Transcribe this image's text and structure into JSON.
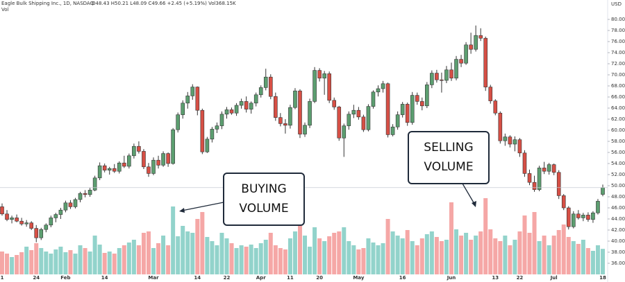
{
  "chart_data": {
    "type": "candlestick",
    "title": "Eagle Bulk Shipping Inc., 1D, NASDAQ",
    "legend_text": "O48.43 H50.21 L48.09 C49.66 +2.45 (+5.19%) Vol368.15K",
    "volume_label": "Vol",
    "y_axis_label": "USD",
    "up_color": "#5c9e70",
    "down_color": "#d64f45",
    "volume_up_color": "#92d3cb",
    "volume_down_color": "#f5a7a6",
    "ylim": [
      36,
      80
    ],
    "yticks": [
      {
        "value": 36,
        "label": "36.00"
      },
      {
        "value": 38,
        "label": "38.00"
      },
      {
        "value": 40,
        "label": "40.00"
      },
      {
        "value": 42,
        "label": "42.00"
      },
      {
        "value": 44,
        "label": "44.00"
      },
      {
        "value": 46,
        "label": "46.00"
      },
      {
        "value": 48,
        "label": "48.00"
      },
      {
        "value": 50,
        "label": "50.00"
      },
      {
        "value": 52,
        "label": "52.00"
      },
      {
        "value": 54,
        "label": "54.00"
      },
      {
        "value": 56,
        "label": "56.00"
      },
      {
        "value": 58,
        "label": "58.00"
      },
      {
        "value": 60,
        "label": "60.00"
      },
      {
        "value": 62,
        "label": "62.00"
      },
      {
        "value": 64,
        "label": "64.00"
      },
      {
        "value": 66,
        "label": "66.00"
      },
      {
        "value": 68,
        "label": "68.00"
      },
      {
        "value": 70,
        "label": "70.00"
      },
      {
        "value": 72,
        "label": "72.00"
      },
      {
        "value": 74,
        "label": "74.00"
      },
      {
        "value": 76,
        "label": "76.00"
      },
      {
        "value": 78,
        "label": "78.00"
      },
      {
        "value": 80,
        "label": "80.00"
      }
    ],
    "vlim": [
      0,
      1500
    ],
    "categories": [
      "1",
      null,
      null,
      null,
      null,
      null,
      null,
      "24",
      null,
      null,
      null,
      null,
      null,
      "Feb",
      null,
      null,
      null,
      null,
      null,
      null,
      null,
      "14",
      null,
      null,
      null,
      null,
      null,
      null,
      null,
      null,
      null,
      "Mar",
      null,
      null,
      null,
      null,
      null,
      null,
      null,
      null,
      "14",
      null,
      null,
      null,
      null,
      null,
      "22",
      null,
      null,
      null,
      null,
      null,
      null,
      "Apr",
      null,
      null,
      null,
      null,
      null,
      "11",
      null,
      null,
      null,
      null,
      null,
      "20",
      null,
      null,
      null,
      null,
      null,
      null,
      null,
      "May",
      null,
      null,
      null,
      null,
      null,
      null,
      null,
      null,
      "16",
      null,
      null,
      null,
      null,
      null,
      null,
      null,
      null,
      null,
      "Jun",
      null,
      null,
      null,
      null,
      null,
      null,
      null,
      null,
      "13",
      null,
      null,
      null,
      null,
      "22",
      null,
      null,
      null,
      null,
      null,
      null,
      "Jul",
      null,
      null,
      null,
      null,
      null,
      null,
      null,
      null,
      null,
      "18"
    ],
    "ohlc": [
      [
        46.2,
        46.8,
        44.6,
        44.9
      ],
      [
        44.9,
        45.6,
        43.6,
        43.9
      ],
      [
        43.9,
        44.6,
        43.2,
        44.2
      ],
      [
        44.2,
        44.8,
        43.4,
        43.6
      ],
      [
        43.6,
        44.2,
        42.8,
        43.1
      ],
      [
        43.1,
        43.8,
        42.6,
        43.3
      ],
      [
        43.3,
        43.6,
        42.0,
        42.3
      ],
      [
        42.3,
        42.9,
        39.8,
        40.6
      ],
      [
        40.6,
        42.4,
        40.2,
        42.1
      ],
      [
        42.1,
        43.2,
        41.6,
        42.9
      ],
      [
        42.9,
        44.6,
        42.5,
        44.2
      ],
      [
        44.2,
        45.1,
        43.4,
        44.8
      ],
      [
        44.8,
        46.0,
        44.0,
        45.6
      ],
      [
        45.6,
        47.3,
        45.2,
        46.9
      ],
      [
        46.9,
        47.4,
        45.8,
        46.2
      ],
      [
        46.2,
        47.8,
        45.9,
        47.5
      ],
      [
        47.5,
        48.9,
        47.0,
        48.6
      ],
      [
        48.6,
        49.2,
        47.9,
        48.4
      ],
      [
        48.4,
        49.6,
        48.0,
        49.2
      ],
      [
        49.2,
        51.8,
        49.0,
        51.4
      ],
      [
        51.4,
        54.2,
        51.0,
        53.6
      ],
      [
        53.6,
        54.0,
        52.4,
        52.8
      ],
      [
        52.8,
        53.4,
        52.0,
        53.1
      ],
      [
        53.1,
        53.9,
        52.3,
        52.6
      ],
      [
        52.6,
        54.4,
        52.2,
        54.1
      ],
      [
        54.1,
        55.4,
        53.2,
        53.5
      ],
      [
        53.5,
        55.8,
        53.1,
        55.4
      ],
      [
        55.4,
        57.6,
        54.9,
        57.1
      ],
      [
        57.1,
        58.0,
        55.8,
        56.2
      ],
      [
        56.2,
        56.6,
        53.0,
        53.4
      ],
      [
        53.4,
        54.1,
        51.6,
        52.2
      ],
      [
        52.2,
        55.1,
        51.9,
        54.6
      ],
      [
        54.6,
        55.4,
        53.1,
        53.7
      ],
      [
        53.7,
        56.2,
        53.4,
        55.8
      ],
      [
        55.8,
        56.0,
        53.4,
        54.0
      ],
      [
        54.0,
        60.4,
        53.8,
        60.1
      ],
      [
        60.1,
        63.2,
        59.6,
        62.8
      ],
      [
        62.8,
        65.4,
        62.1,
        64.9
      ],
      [
        64.9,
        66.9,
        63.9,
        66.2
      ],
      [
        66.2,
        68.3,
        65.5,
        67.8
      ],
      [
        67.8,
        67.9,
        62.7,
        63.6
      ],
      [
        63.6,
        63.9,
        55.7,
        56.1
      ],
      [
        56.1,
        58.8,
        55.9,
        58.4
      ],
      [
        58.4,
        60.6,
        57.8,
        60.2
      ],
      [
        60.2,
        61.4,
        59.5,
        60.8
      ],
      [
        60.8,
        63.4,
        60.2,
        62.9
      ],
      [
        62.9,
        64.2,
        62.1,
        63.7
      ],
      [
        63.7,
        64.1,
        62.8,
        63.1
      ],
      [
        63.1,
        64.9,
        62.6,
        64.5
      ],
      [
        64.5,
        65.7,
        63.9,
        65.2
      ],
      [
        65.2,
        66.1,
        63.2,
        63.8
      ],
      [
        63.8,
        65.2,
        63.0,
        64.9
      ],
      [
        64.9,
        66.8,
        64.3,
        66.4
      ],
      [
        66.4,
        68.1,
        65.9,
        67.7
      ],
      [
        67.7,
        71.1,
        67.2,
        69.6
      ],
      [
        69.6,
        70.1,
        65.6,
        66.1
      ],
      [
        66.1,
        66.8,
        61.7,
        62.3
      ],
      [
        62.3,
        63.1,
        60.7,
        61.2
      ],
      [
        61.2,
        62.0,
        59.4,
        60.9
      ],
      [
        60.9,
        64.6,
        60.3,
        64.1
      ],
      [
        64.1,
        67.6,
        63.8,
        67.1
      ],
      [
        67.1,
        67.4,
        58.6,
        59.3
      ],
      [
        59.3,
        61.4,
        58.8,
        60.9
      ],
      [
        60.9,
        65.7,
        60.4,
        65.2
      ],
      [
        65.2,
        71.4,
        64.9,
        70.8
      ],
      [
        70.8,
        71.2,
        68.8,
        69.4
      ],
      [
        69.4,
        70.7,
        66.4,
        70.2
      ],
      [
        70.2,
        70.6,
        64.9,
        65.4
      ],
      [
        65.4,
        65.9,
        63.7,
        64.2
      ],
      [
        64.2,
        64.4,
        58.1,
        58.6
      ],
      [
        58.6,
        61.2,
        55.2,
        60.8
      ],
      [
        60.8,
        63.4,
        60.1,
        62.9
      ],
      [
        62.9,
        64.6,
        62.2,
        63.6
      ],
      [
        63.6,
        64.2,
        61.9,
        62.4
      ],
      [
        62.4,
        62.8,
        59.7,
        60.1
      ],
      [
        60.1,
        64.7,
        59.8,
        64.3
      ],
      [
        64.3,
        67.2,
        63.9,
        66.9
      ],
      [
        66.9,
        68.1,
        66.1,
        67.5
      ],
      [
        67.5,
        68.9,
        66.8,
        68.4
      ],
      [
        68.4,
        68.6,
        58.7,
        59.2
      ],
      [
        59.2,
        61.1,
        58.9,
        60.6
      ],
      [
        60.6,
        63.4,
        60.1,
        62.8
      ],
      [
        62.8,
        65.1,
        62.3,
        64.7
      ],
      [
        64.7,
        65.0,
        60.8,
        61.4
      ],
      [
        61.4,
        66.9,
        61.0,
        66.3
      ],
      [
        66.3,
        66.8,
        64.6,
        65.2
      ],
      [
        65.2,
        65.9,
        63.6,
        64.4
      ],
      [
        64.4,
        68.7,
        64.0,
        68.2
      ],
      [
        68.2,
        70.8,
        67.6,
        70.3
      ],
      [
        70.3,
        70.9,
        68.6,
        69.1
      ],
      [
        69.1,
        70.4,
        66.8,
        69.0
      ],
      [
        69.0,
        71.6,
        68.5,
        70.9
      ],
      [
        70.9,
        72.2,
        68.9,
        69.4
      ],
      [
        69.4,
        73.4,
        69.0,
        72.8
      ],
      [
        72.8,
        73.6,
        71.4,
        72.1
      ],
      [
        72.1,
        75.9,
        71.8,
        75.4
      ],
      [
        75.4,
        77.6,
        73.8,
        74.6
      ],
      [
        74.6,
        78.9,
        74.2,
        77.1
      ],
      [
        77.1,
        78.4,
        76.1,
        76.6
      ],
      [
        76.6,
        76.9,
        67.1,
        67.8
      ],
      [
        67.8,
        68.2,
        64.8,
        65.3
      ],
      [
        65.3,
        65.6,
        62.7,
        63.1
      ],
      [
        63.1,
        63.4,
        57.6,
        58.1
      ],
      [
        58.1,
        59.4,
        57.2,
        58.8
      ],
      [
        58.8,
        59.1,
        56.9,
        57.5
      ],
      [
        57.5,
        58.9,
        56.2,
        58.3
      ],
      [
        58.3,
        58.6,
        55.2,
        55.9
      ],
      [
        55.9,
        56.4,
        51.6,
        52.2
      ],
      [
        52.2,
        52.9,
        50.1,
        50.6
      ],
      [
        50.6,
        51.8,
        48.9,
        49.3
      ],
      [
        49.3,
        53.6,
        49.0,
        53.2
      ],
      [
        53.2,
        54.3,
        52.1,
        52.6
      ],
      [
        52.6,
        54.1,
        52.0,
        53.8
      ],
      [
        53.8,
        54.0,
        51.9,
        52.4
      ],
      [
        52.4,
        52.8,
        47.6,
        48.2
      ],
      [
        48.2,
        48.5,
        45.6,
        46.0
      ],
      [
        46.0,
        46.3,
        42.1,
        42.6
      ],
      [
        42.6,
        45.4,
        42.3,
        44.9
      ],
      [
        44.9,
        45.6,
        43.9,
        44.2
      ],
      [
        44.2,
        45.1,
        43.6,
        44.7
      ],
      [
        44.7,
        45.2,
        43.5,
        43.9
      ],
      [
        43.9,
        45.4,
        43.3,
        45.1
      ],
      [
        45.1,
        47.6,
        44.8,
        47.2
      ],
      [
        48.43,
        50.21,
        48.09,
        49.66
      ]
    ],
    "volume": [
      330,
      300,
      250,
      280,
      320,
      400,
      350,
      450,
      380,
      330,
      300,
      360,
      400,
      320,
      350,
      300,
      420,
      380,
      330,
      560,
      430,
      310,
      330,
      300,
      380,
      420,
      460,
      500,
      420,
      600,
      620,
      380,
      450,
      560,
      420,
      980,
      550,
      700,
      620,
      600,
      800,
      900,
      540,
      480,
      420,
      600,
      520,
      450,
      380,
      420,
      400,
      430,
      380,
      450,
      500,
      600,
      420,
      380,
      360,
      520,
      620,
      700,
      560,
      400,
      680,
      520,
      480,
      550,
      600,
      620,
      680,
      480,
      420,
      360,
      380,
      520,
      460,
      420,
      450,
      800,
      620,
      560,
      520,
      640,
      480,
      420,
      520,
      580,
      620,
      540,
      480,
      500,
      1040,
      650,
      560,
      600,
      500,
      560,
      620,
      1100,
      650,
      520,
      480,
      560,
      420,
      500,
      620,
      850,
      600,
      900,
      480,
      560,
      420,
      560,
      640,
      720,
      540,
      480,
      440,
      500,
      380,
      340,
      420,
      368.15
    ],
    "annotations": [
      {
        "lines": [
          "BUYING",
          "VOLUME"
        ]
      },
      {
        "lines": [
          "SELLING",
          "VOLUME"
        ]
      }
    ]
  }
}
